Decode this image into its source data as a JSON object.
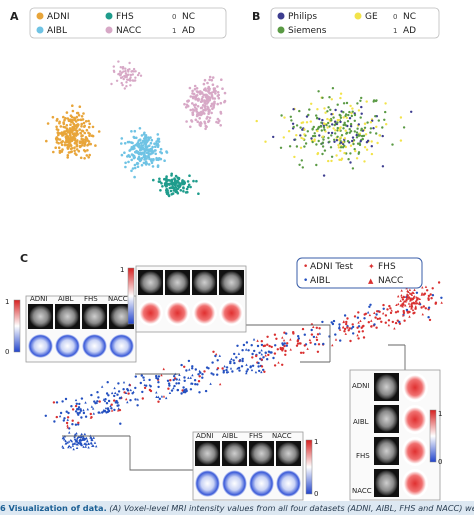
{
  "panels": {
    "a": {
      "letter": "A",
      "legend": {
        "datasets": [
          {
            "name": "ADNI",
            "color": "#e8a53a"
          },
          {
            "name": "FHS",
            "color": "#1f9c8c"
          },
          {
            "name": "AIBL",
            "color": "#6fc3e4"
          },
          {
            "name": "NACC",
            "color": "#d7a8c6"
          }
        ],
        "classes": [
          {
            "code": "0",
            "label": "NC"
          },
          {
            "code": "1",
            "label": "AD"
          }
        ]
      }
    },
    "b": {
      "letter": "B",
      "legend": {
        "scanners": [
          {
            "name": "Philips",
            "color": "#3d3d8f"
          },
          {
            "name": "GE",
            "color": "#f2e34a"
          },
          {
            "name": "Siemens",
            "color": "#5a9a44"
          }
        ],
        "classes": [
          {
            "code": "0",
            "label": "NC"
          },
          {
            "code": "1",
            "label": "AD"
          }
        ]
      }
    },
    "c": {
      "letter": "C",
      "legend": {
        "items": [
          {
            "marker": "•",
            "name": "ADNI Test",
            "color": "#d93030"
          },
          {
            "marker": "✦",
            "name": "FHS",
            "color": "#d93030"
          },
          {
            "marker": "•",
            "name": "AIBL",
            "color": "#2450c0"
          },
          {
            "marker": "▲",
            "name": "NACC",
            "color": "#d93030"
          }
        ]
      },
      "inset_labels": [
        "ADNI",
        "AIBL",
        "FHS",
        "NACC"
      ],
      "colorbar": {
        "max": "1",
        "min": "0",
        "high_color": "#d62020",
        "low_color": "#2244cc"
      }
    }
  },
  "caption": {
    "fig_label": "6 Visualization of data.",
    "text": "(A) Voxel-level MRI intensity values from all four datasets (ADNI, AIBL, FHS and NACC) were used as in"
  }
}
